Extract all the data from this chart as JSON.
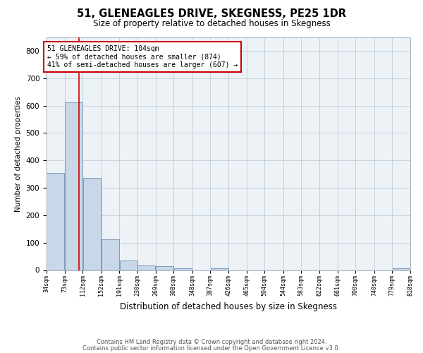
{
  "title": "51, GLENEAGLES DRIVE, SKEGNESS, PE25 1DR",
  "subtitle": "Size of property relative to detached houses in Skegness",
  "xlabel": "Distribution of detached houses by size in Skegness",
  "ylabel": "Number of detached properties",
  "bin_edges": [
    34,
    73,
    112,
    152,
    191,
    230,
    269,
    308,
    348,
    387,
    426,
    465,
    504,
    544,
    583,
    622,
    661,
    700,
    740,
    779,
    818
  ],
  "bar_heights": [
    355,
    612,
    335,
    113,
    36,
    18,
    13,
    7,
    0,
    7,
    0,
    0,
    0,
    0,
    0,
    0,
    0,
    0,
    0,
    7
  ],
  "bar_color": "#c8d8e8",
  "bar_edge_color": "#7090b0",
  "property_size": 104,
  "vline_color": "#cc0000",
  "annotation_line1": "51 GLENEAGLES DRIVE: 104sqm",
  "annotation_line2": "← 59% of detached houses are smaller (874)",
  "annotation_line3": "41% of semi-detached houses are larger (607) →",
  "annotation_box_color": "white",
  "annotation_box_edge": "#cc0000",
  "ylim": [
    0,
    850
  ],
  "yticks": [
    0,
    100,
    200,
    300,
    400,
    500,
    600,
    700,
    800
  ],
  "footer_line1": "Contains HM Land Registry data © Crown copyright and database right 2024.",
  "footer_line2": "Contains public sector information licensed under the Open Government Licence v3.0.",
  "background_color": "#edf2f7",
  "grid_color": "#c0ccd8",
  "title_fontsize": 10.5,
  "subtitle_fontsize": 8.5
}
